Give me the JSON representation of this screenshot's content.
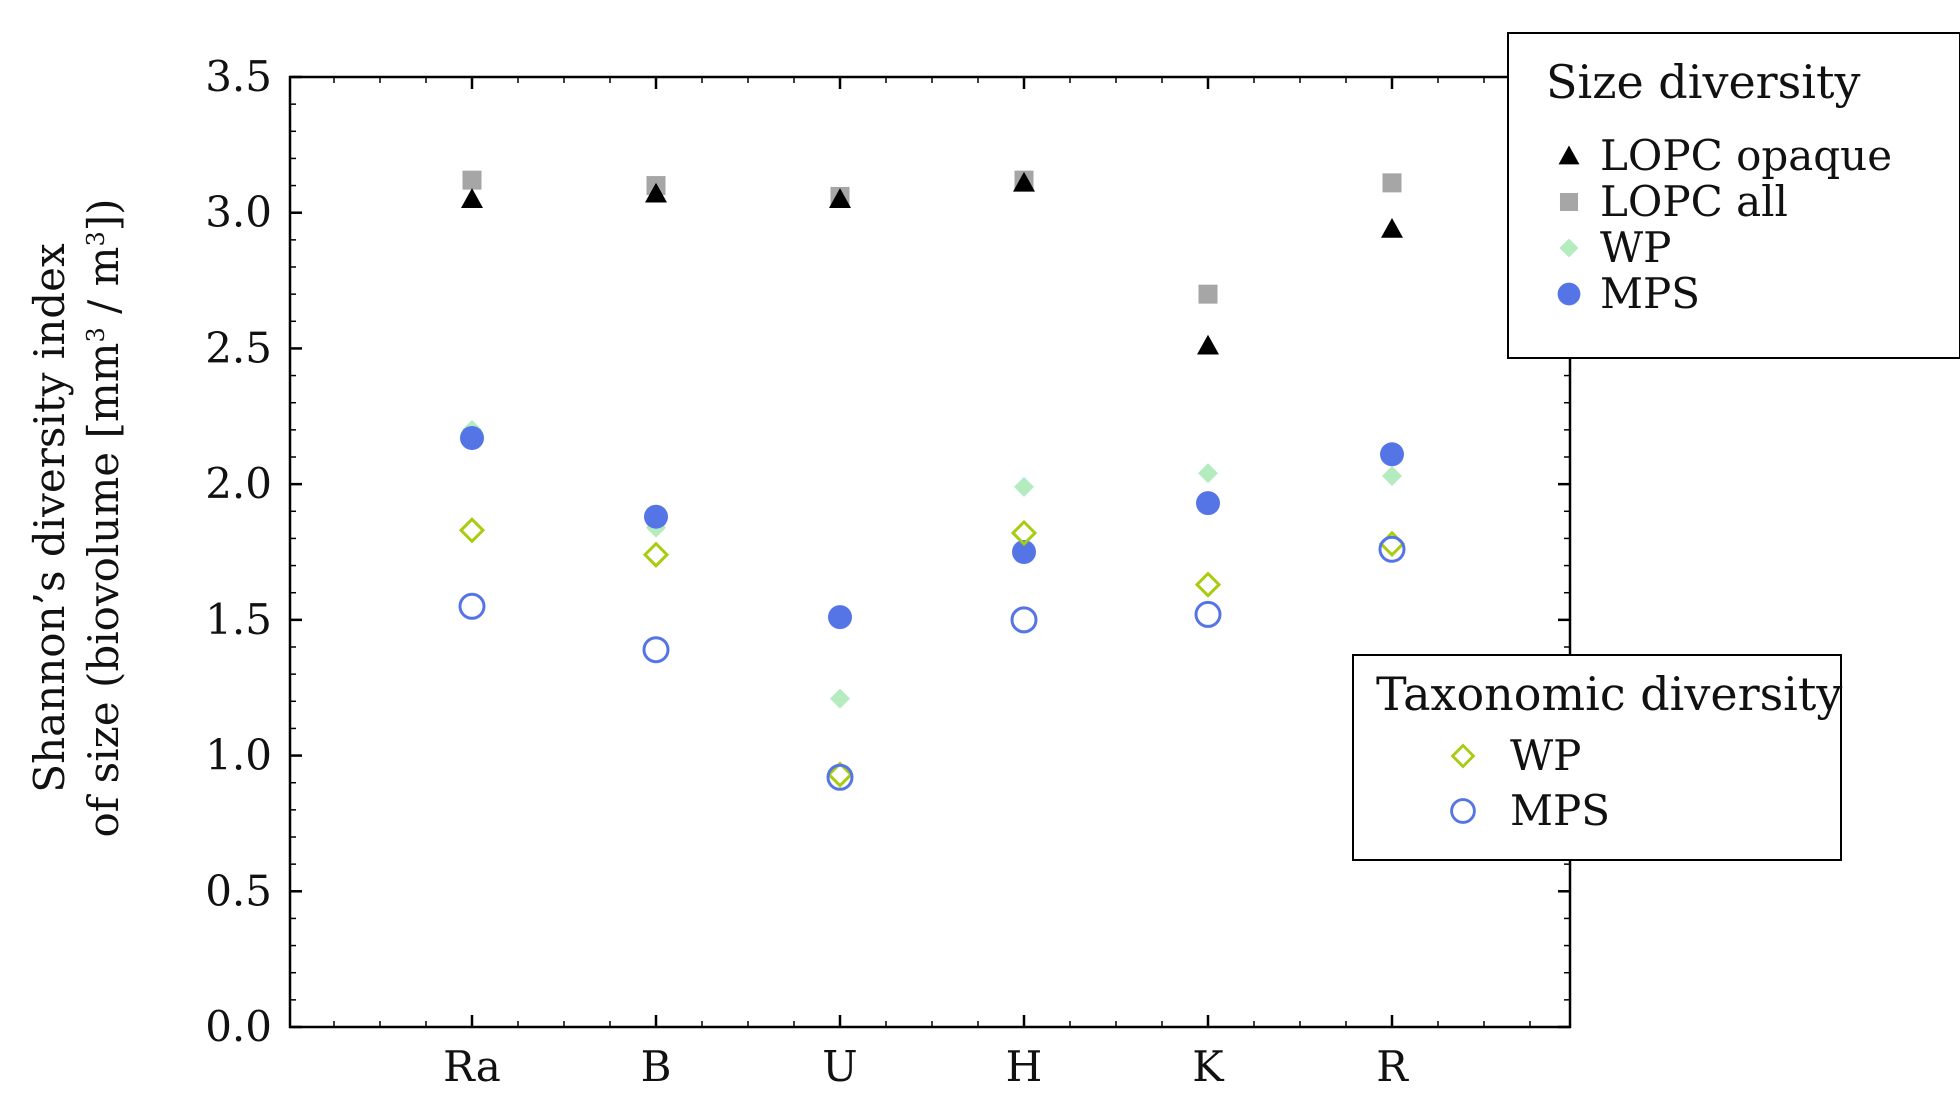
{
  "chart_data": {
    "type": "scatter",
    "title": "",
    "categories": [
      "Ra",
      "B",
      "U",
      "H",
      "K",
      "R"
    ],
    "ylabel_line1": "Shannon’s diversity index",
    "ylabel_line2_pre": "of size (biovolume [mm",
    "ylabel_line2_sup1": "3",
    "ylabel_line2_mid": " / m",
    "ylabel_line2_sup2": "3",
    "ylabel_line2_post": "])",
    "xlabel": "",
    "ylim": [
      0.0,
      3.5
    ],
    "yticks": [
      0.0,
      0.5,
      1.0,
      1.5,
      2.0,
      2.5,
      3.0,
      3.5
    ],
    "ytick_labels": [
      "0.0",
      "0.5",
      "1.0",
      "1.5",
      "2.0",
      "2.5",
      "3.0",
      "3.5"
    ],
    "grid": false,
    "series": [
      {
        "key": "lopc_all",
        "name": "LOPC all",
        "group": "size",
        "marker": "square",
        "filled": true,
        "color": "#a6a6a6",
        "values": [
          3.12,
          3.1,
          3.06,
          3.12,
          2.7,
          3.11
        ]
      },
      {
        "key": "lopc_opaque",
        "name": "LOPC opaque",
        "group": "size",
        "marker": "triangle",
        "filled": true,
        "color": "#000000",
        "values": [
          3.05,
          3.07,
          3.05,
          3.11,
          2.51,
          2.94
        ]
      },
      {
        "key": "wp_size",
        "name": "WP",
        "group": "size",
        "marker": "diamond",
        "filled": true,
        "color": "#b4ecbf",
        "values": [
          2.2,
          1.84,
          1.21,
          1.99,
          2.04,
          2.03
        ]
      },
      {
        "key": "mps_size",
        "name": "MPS",
        "group": "size",
        "marker": "circle",
        "filled": true,
        "color": "#5575e6",
        "values": [
          2.17,
          1.88,
          1.51,
          1.75,
          1.93,
          2.11
        ]
      },
      {
        "key": "wp_tax",
        "name": "WP",
        "group": "taxonomic",
        "marker": "diamond",
        "filled": false,
        "color": "#a8cc10",
        "values": [
          1.83,
          1.74,
          0.93,
          1.82,
          1.63,
          1.78
        ]
      },
      {
        "key": "mps_tax",
        "name": "MPS",
        "group": "taxonomic",
        "marker": "circle",
        "filled": false,
        "color": "#5575e6",
        "values": [
          1.55,
          1.39,
          0.92,
          1.5,
          1.52,
          1.76
        ]
      }
    ],
    "legends": [
      {
        "title": "Size diversity",
        "placement": "top-right",
        "entries": [
          {
            "series": "lopc_opaque",
            "label": "LOPC opaque"
          },
          {
            "series": "lopc_all",
            "label": "LOPC all"
          },
          {
            "series": "wp_size",
            "label": "WP"
          },
          {
            "series": "mps_size",
            "label": "MPS"
          }
        ]
      },
      {
        "title": "Taxonomic diversity",
        "placement": "right",
        "entries": [
          {
            "series": "wp_tax",
            "label": "WP"
          },
          {
            "series": "mps_tax",
            "label": "MPS"
          }
        ]
      }
    ]
  }
}
